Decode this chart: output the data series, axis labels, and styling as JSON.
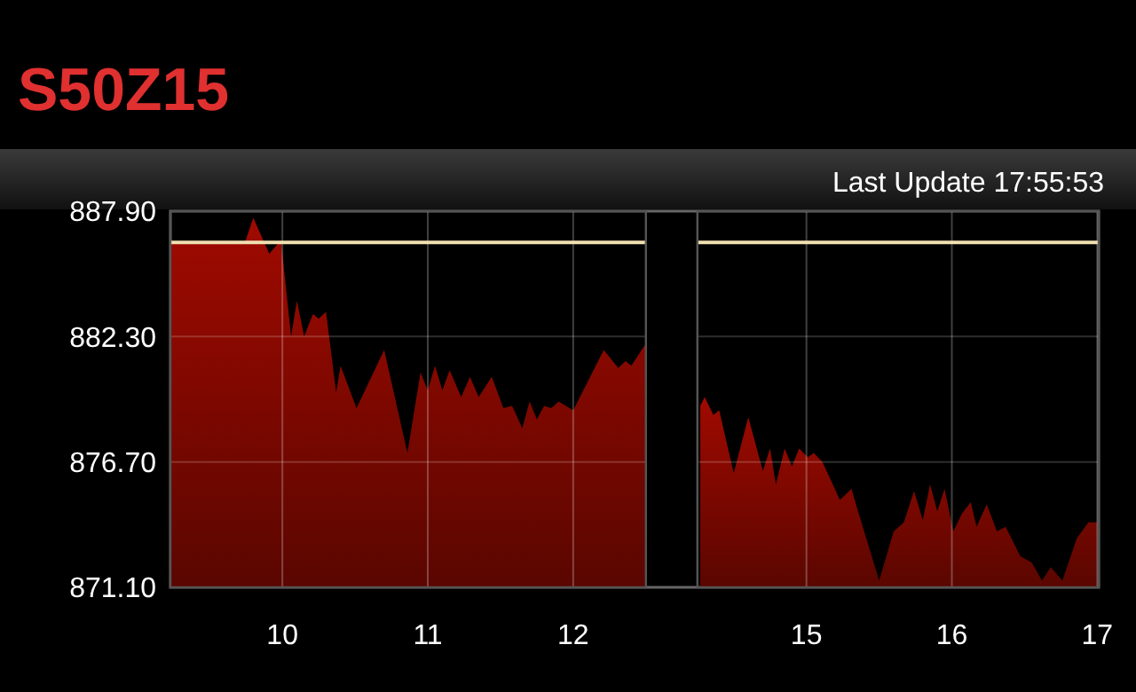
{
  "chart_data": [
    {
      "type": "area",
      "title": "S50Z15",
      "annotations": [
        "Last Update 17:55:53"
      ],
      "x": [
        9.23,
        9.74,
        9.8,
        9.91,
        9.99,
        10.06,
        10.1,
        10.15,
        10.21,
        10.25,
        10.3,
        10.37,
        10.4,
        10.51,
        10.7,
        10.86,
        10.95,
        11.0,
        11.05,
        11.1,
        11.15,
        11.23,
        11.29,
        11.35,
        11.44,
        11.52,
        11.58,
        11.65,
        11.7,
        11.75,
        11.8,
        11.85,
        11.9,
        12.0,
        12.21,
        12.31,
        12.36,
        12.4,
        12.49,
        12.5
      ],
      "series": [
        {
          "color": "#a00a00",
          "values": [
            886.45,
            886.45,
            887.6,
            886.0,
            886.6,
            882.3,
            883.9,
            882.3,
            883.3,
            883.1,
            883.4,
            879.8,
            881.0,
            879.1,
            881.7,
            877.1,
            880.7,
            879.9,
            881.0,
            879.9,
            880.8,
            879.6,
            880.5,
            879.6,
            880.5,
            879.1,
            879.2,
            878.2,
            879.4,
            878.6,
            879.2,
            879.1,
            879.4,
            879.0,
            881.7,
            880.9,
            881.2,
            881.0,
            881.9,
            881.9
          ]
        }
      ],
      "xlim": [
        9.23,
        12.5
      ],
      "xticks": [
        10,
        11,
        12
      ],
      "ylim": [
        871.1,
        887.9
      ],
      "yticks": [
        {
          "value": 871.1,
          "label": "871.10"
        },
        {
          "value": 876.7,
          "label": "876.70"
        },
        {
          "value": 882.3,
          "label": "882.30"
        },
        {
          "value": 887.9,
          "label": "887.90"
        }
      ],
      "grid": true,
      "ref_lines": [
        {
          "axis": "y",
          "value": 886.5,
          "color": "#f0e0b0"
        }
      ]
    },
    {
      "type": "area",
      "x": [
        14.27,
        14.3,
        14.36,
        14.4,
        14.5,
        14.6,
        14.7,
        14.75,
        14.79,
        14.85,
        14.9,
        14.95,
        15.01,
        15.05,
        15.11,
        15.23,
        15.31,
        15.35,
        15.5,
        15.6,
        15.67,
        15.74,
        15.8,
        15.85,
        15.9,
        15.95,
        16.01,
        16.07,
        16.13,
        16.17,
        16.24,
        16.31,
        16.37,
        16.47,
        16.55,
        16.62,
        16.68,
        16.76,
        16.86,
        16.94,
        17.0
      ],
      "series": [
        {
          "color": "#a00a00",
          "values": [
            879.2,
            879.6,
            878.8,
            879.0,
            876.2,
            878.7,
            876.3,
            877.3,
            875.7,
            877.3,
            876.5,
            877.3,
            876.9,
            877.1,
            876.7,
            875.0,
            875.5,
            874.6,
            871.4,
            873.6,
            874.0,
            875.4,
            874.1,
            875.7,
            874.5,
            875.5,
            873.6,
            874.4,
            874.9,
            873.8,
            874.8,
            873.6,
            873.8,
            872.5,
            872.2,
            871.4,
            872.0,
            871.4,
            873.3,
            874.0,
            874.0
          ]
        }
      ],
      "xlim": [
        14.25,
        17.01
      ],
      "xticks": [
        15,
        16,
        17
      ],
      "ylim": [
        871.1,
        887.9
      ],
      "yticks": [
        871.1,
        876.7,
        882.3,
        887.9
      ],
      "tick_labels": "x",
      "grid": true,
      "ref_lines": [
        {
          "axis": "y",
          "value": 886.5,
          "color": "#f0e0b0"
        }
      ]
    }
  ]
}
